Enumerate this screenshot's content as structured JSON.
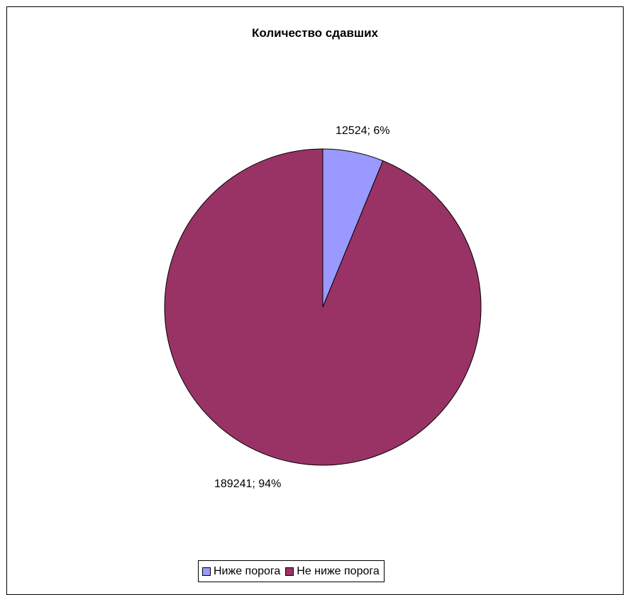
{
  "chart_data": {
    "type": "pie",
    "title": "Количество сдавших",
    "categories": [
      "Ниже порога",
      "Не ниже порога"
    ],
    "values": [
      12524,
      189241
    ],
    "percentages": [
      6,
      94
    ],
    "data_labels": [
      "12524; 6%",
      "189241; 94%"
    ],
    "colors": [
      "#9999ff",
      "#993366"
    ],
    "legend_position": "bottom"
  }
}
